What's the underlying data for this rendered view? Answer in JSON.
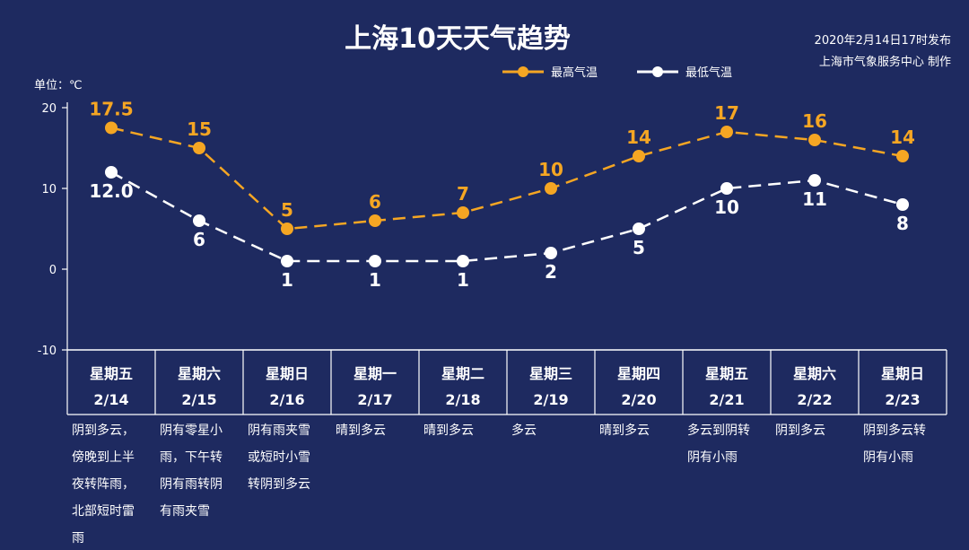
{
  "header": {
    "title": "上海10天天气趋势",
    "publish_time": "2020年2月14日17时发布",
    "publisher": "上海市气象服务中心 制作"
  },
  "chart_data": {
    "type": "line",
    "title": "上海10天天气趋势",
    "ylabel": "单位：℃",
    "ylim": [
      -10,
      20
    ],
    "yticks": [
      20,
      10,
      0,
      -10
    ],
    "grid": false,
    "legend_position": "top-right",
    "categories": [
      "2/14",
      "2/15",
      "2/16",
      "2/17",
      "2/18",
      "2/19",
      "2/20",
      "2/21",
      "2/22",
      "2/23"
    ],
    "weekdays": [
      "星期五",
      "星期六",
      "星期日",
      "星期一",
      "星期二",
      "星期三",
      "星期四",
      "星期五",
      "星期六",
      "星期日"
    ],
    "series": [
      {
        "name": "最高气温",
        "color": "#f5a623",
        "values": [
          17.5,
          15,
          5,
          6,
          7,
          10,
          14,
          17,
          16,
          14
        ],
        "labels": [
          "17.5",
          "15",
          "5",
          "6",
          "7",
          "10",
          "14",
          "17",
          "16",
          "14"
        ]
      },
      {
        "name": "最低气温",
        "color": "#ffffff",
        "values": [
          12.0,
          6,
          1,
          1,
          1,
          2,
          5,
          10,
          11,
          8
        ],
        "labels": [
          "12.0",
          "6",
          "1",
          "1",
          "1",
          "2",
          "5",
          "10",
          "11",
          "8"
        ]
      }
    ],
    "weather": [
      [
        "阴到多云，",
        "傍晚到上半",
        "夜转阵雨，",
        "北部短时雷",
        "雨"
      ],
      [
        "阴有零星小",
        "雨，下午转",
        "阴有雨转阴",
        "有雨夹雪"
      ],
      [
        "阴有雨夹雪",
        "或短时小雪",
        "转阴到多云"
      ],
      [
        "晴到多云"
      ],
      [
        "晴到多云"
      ],
      [
        "多云"
      ],
      [
        "晴到多云"
      ],
      [
        "多云到阴转",
        "阴有小雨"
      ],
      [
        "阴到多云"
      ],
      [
        "阴到多云转",
        "阴有小雨"
      ]
    ]
  }
}
